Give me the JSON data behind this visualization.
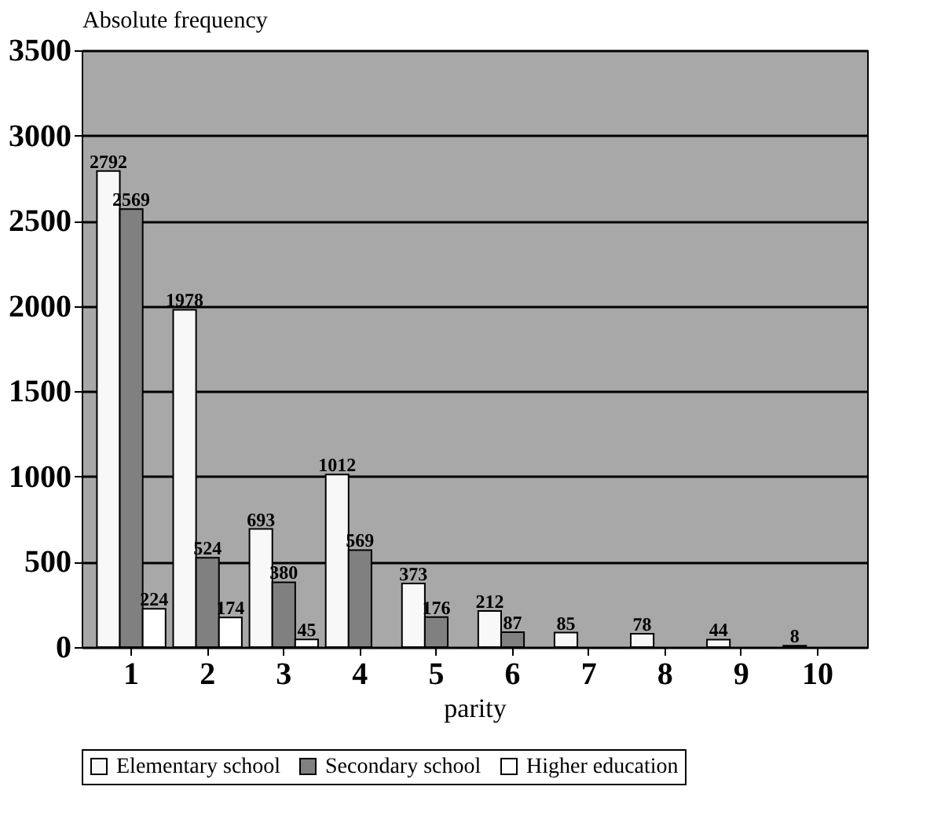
{
  "chart_data": {
    "type": "bar",
    "ylabel": "Absolute frequency",
    "xlabel": "parity",
    "categories": [
      "1",
      "2",
      "3",
      "4",
      "5",
      "6",
      "7",
      "8",
      "9",
      "10"
    ],
    "series": [
      {
        "name": "Elementary school",
        "color": "#f8f8f8",
        "values": [
          2792,
          1978,
          693,
          1012,
          373,
          212,
          85,
          78,
          44,
          8
        ]
      },
      {
        "name": "Secondary school",
        "color": "#808080",
        "values": [
          2569,
          524,
          380,
          569,
          176,
          87,
          null,
          null,
          null,
          null
        ]
      },
      {
        "name": "Higher education",
        "color": "#ffffff",
        "values": [
          224,
          174,
          45,
          null,
          null,
          null,
          null,
          null,
          null,
          null
        ]
      }
    ],
    "ylim": [
      0,
      3500
    ],
    "yticks": [
      0,
      500,
      1000,
      1500,
      2000,
      2500,
      3000,
      3500
    ],
    "grid": "y",
    "legend": "bottom",
    "data_labels": true
  }
}
